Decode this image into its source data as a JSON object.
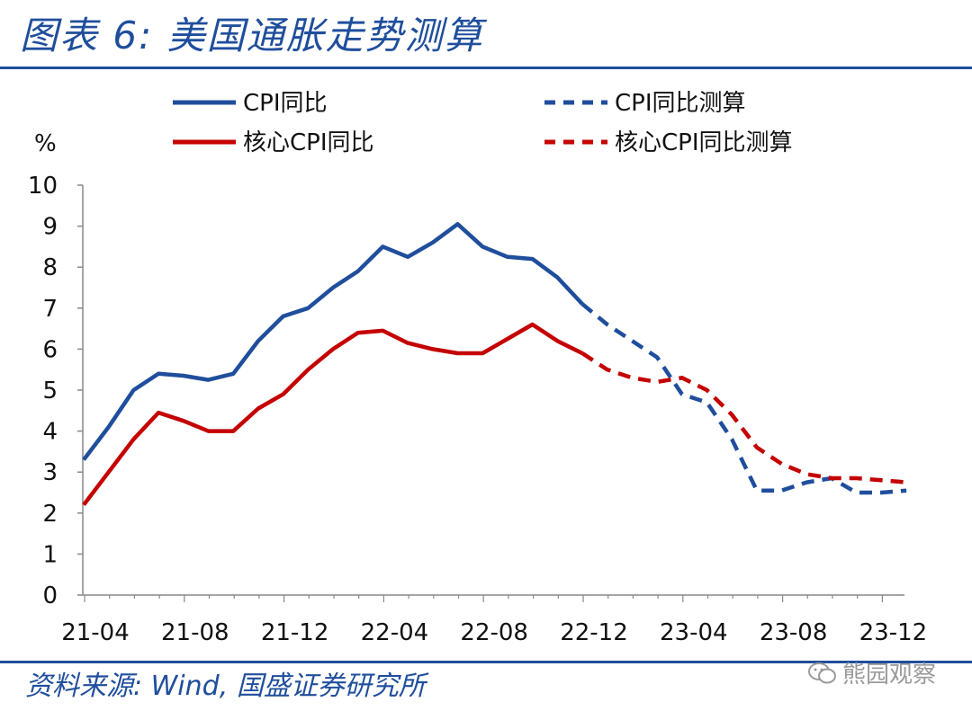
{
  "header": {
    "title": "图表 6:  美国通胀走势测算"
  },
  "footer": {
    "source": "资料来源: Wind, 国盛证券研究所",
    "watermark": "熊园观察"
  },
  "colors": {
    "cpi": "#1f4e9c",
    "core": "#c40000",
    "axis": "#888888",
    "brand": "#1f4e9c"
  },
  "chart_data": {
    "type": "line",
    "ylabel": "%",
    "ylim": [
      0,
      10
    ],
    "yticks": [
      "0",
      "1",
      "2",
      "3",
      "4",
      "5",
      "6",
      "7",
      "8",
      "9",
      "10"
    ],
    "x_tick_labels": [
      "21-04",
      "21-08",
      "21-12",
      "22-04",
      "22-08",
      "22-12",
      "23-04",
      "23-08",
      "23-12"
    ],
    "x_tick_index": [
      0,
      4,
      8,
      12,
      16,
      20,
      24,
      28,
      32
    ],
    "x_count": 33,
    "series": [
      {
        "name": "CPI同比",
        "style": "solid",
        "color": "#1f4e9c",
        "start_index": 0,
        "values": [
          3.3,
          4.1,
          5.0,
          5.4,
          5.35,
          5.25,
          5.4,
          6.2,
          6.8,
          7.0,
          7.5,
          7.9,
          8.5,
          8.25,
          8.6,
          9.05,
          8.5,
          8.25,
          8.2,
          7.75,
          7.1
        ]
      },
      {
        "name": "CPI同比测算",
        "style": "dashed",
        "color": "#1f4e9c",
        "start_index": 20,
        "values": [
          7.1,
          6.6,
          6.2,
          5.8,
          4.9,
          4.7,
          3.8,
          2.55,
          2.55,
          2.75,
          2.85,
          2.5,
          2.5,
          2.55
        ]
      },
      {
        "name": "核心CPI同比",
        "style": "solid",
        "color": "#c40000",
        "start_index": 0,
        "values": [
          2.2,
          3.0,
          3.8,
          4.45,
          4.25,
          4.0,
          4.0,
          4.55,
          4.9,
          5.5,
          6.0,
          6.4,
          6.45,
          6.15,
          6.0,
          5.9,
          5.9,
          6.25,
          6.6,
          6.2,
          5.9
        ]
      },
      {
        "name": "核心CPI同比测算",
        "style": "dashed",
        "color": "#c40000",
        "start_index": 20,
        "values": [
          5.9,
          5.5,
          5.3,
          5.2,
          5.3,
          5.0,
          4.4,
          3.6,
          3.2,
          2.95,
          2.85,
          2.85,
          2.8,
          2.75
        ]
      }
    ],
    "legend": {
      "position": "top",
      "entries": [
        "CPI同比",
        "CPI同比测算",
        "核心CPI同比",
        "核心CPI同比测算"
      ]
    }
  }
}
